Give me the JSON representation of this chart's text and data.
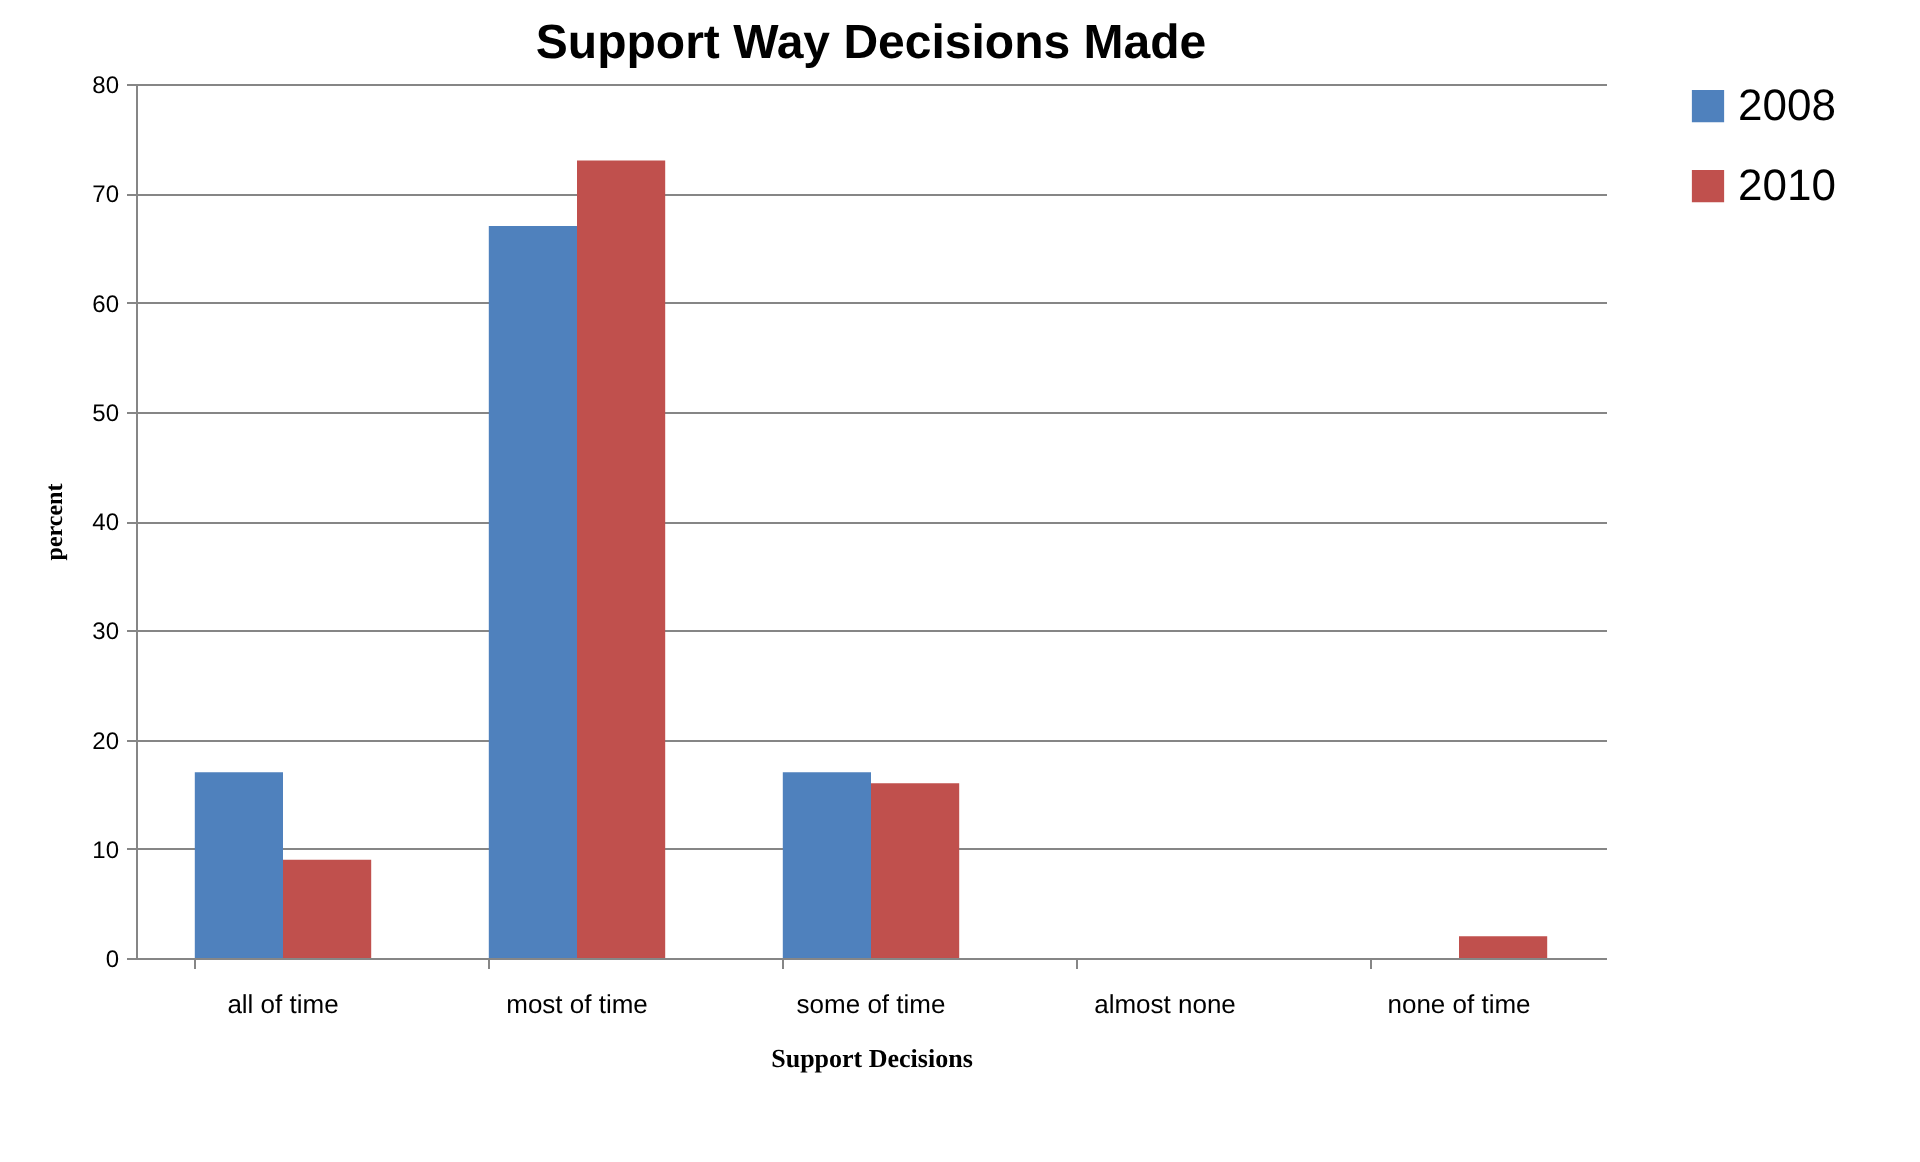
{
  "chart_data": {
    "type": "bar",
    "title": "Support Way Decisions Made",
    "xlabel": "Support Decisions",
    "ylabel": "percent",
    "categories": [
      "all of time",
      "most of time",
      "some of time",
      "almost none",
      "none of time"
    ],
    "series": [
      {
        "name": "2008",
        "color": "#4f81bd",
        "values": [
          17,
          67,
          17,
          0,
          0
        ]
      },
      {
        "name": "2010",
        "color": "#c0504d",
        "values": [
          9,
          73,
          16,
          0,
          2
        ]
      }
    ],
    "ylim": [
      0,
      80
    ],
    "yticks": [
      0,
      10,
      20,
      30,
      40,
      50,
      60,
      70,
      80
    ],
    "grid": "y",
    "legend": "right"
  }
}
